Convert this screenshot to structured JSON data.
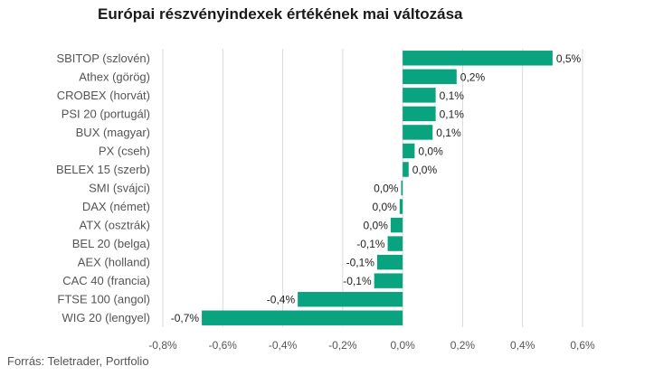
{
  "chart_data": {
    "type": "bar",
    "orientation": "horizontal",
    "title": "Európai részvényindexek értékének mai változása",
    "categories": [
      "SBITOP (szlovén)",
      "Athex (görög)",
      "CROBEX (horvát)",
      "PSI 20 (portugál)",
      "BUX (magyar)",
      "PX (cseh)",
      "BELEX 15 (szerb)",
      "SMI (svájci)",
      "DAX (német)",
      "ATX (osztrák)",
      "BEL 20 (belga)",
      "AEX (holland)",
      "CAC 40 (francia)",
      "FTSE 100 (angol)",
      "WIG 20 (lengyel)"
    ],
    "values": [
      0.5,
      0.18,
      0.11,
      0.11,
      0.1,
      0.04,
      0.02,
      -0.005,
      -0.01,
      -0.04,
      -0.05,
      -0.085,
      -0.095,
      -0.35,
      -0.67
    ],
    "value_labels": [
      "0,5%",
      "0,2%",
      "0,1%",
      "0,1%",
      "0,1%",
      "0,0%",
      "0,0%",
      "0,0%",
      "0,0%",
      "0,0%",
      "-0,1%",
      "-0,1%",
      "-0,1%",
      "-0,4%",
      "-0,7%"
    ],
    "xlim": [
      -0.8,
      0.6
    ],
    "x_ticks": [
      -0.8,
      -0.6,
      -0.4,
      -0.2,
      0.0,
      0.2,
      0.4,
      0.6
    ],
    "x_tick_labels": [
      "-0,8%",
      "-0,6%",
      "-0,4%",
      "-0,2%",
      "0,0%",
      "0,2%",
      "0,4%",
      "0,6%"
    ],
    "grid": true,
    "bar_color": "#0aa37f",
    "grid_color": "#d9d9d9"
  },
  "footer": {
    "source": "Forrás: Teletrader, Portfolio"
  }
}
